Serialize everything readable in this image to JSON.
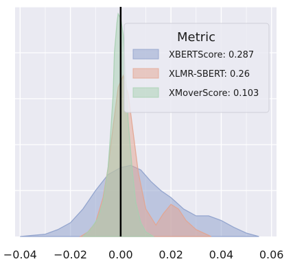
{
  "chart_data": {
    "type": "area",
    "title": "",
    "xlabel": "",
    "ylabel": "",
    "xlim": [
      -0.042,
      0.062
    ],
    "ylim": [
      0,
      1
    ],
    "grid": true,
    "xticks": [
      {
        "value": -0.04,
        "label": "−0.04"
      },
      {
        "value": -0.02,
        "label": "−0.02"
      },
      {
        "value": 0.0,
        "label": "0.00"
      },
      {
        "value": 0.02,
        "label": "0.02"
      },
      {
        "value": 0.04,
        "label": "0.04"
      },
      {
        "value": 0.06,
        "label": "0.06"
      }
    ],
    "vline": 0.0,
    "legend": {
      "title": "Metric",
      "position": "top-right",
      "entries": [
        "XBERTScore: 0.287",
        "XLMR-SBERT: 0.26",
        "XMoverScore: 0.103"
      ]
    },
    "series": [
      {
        "name": "XBERTScore: 0.287",
        "color": "#8da0cb",
        "x": [
          -0.04,
          -0.03,
          -0.025,
          -0.02,
          -0.015,
          -0.01,
          -0.005,
          0.0,
          0.004,
          0.008,
          0.012,
          0.016,
          0.02,
          0.025,
          0.03,
          0.035,
          0.04,
          0.045,
          0.05,
          0.055
        ],
        "values": [
          0.0,
          0.01,
          0.03,
          0.06,
          0.12,
          0.2,
          0.27,
          0.3,
          0.31,
          0.29,
          0.24,
          0.2,
          0.17,
          0.12,
          0.09,
          0.09,
          0.07,
          0.04,
          0.015,
          0.0
        ]
      },
      {
        "name": "XLMR-SBERT: 0.26",
        "color": "#e3a48f",
        "x": [
          -0.016,
          -0.013,
          -0.01,
          -0.007,
          -0.005,
          -0.003,
          -0.001,
          0.001,
          0.003,
          0.005,
          0.007,
          0.01,
          0.014,
          0.017,
          0.02,
          0.023,
          0.026,
          0.03,
          0.036
        ],
        "values": [
          0.0,
          0.02,
          0.06,
          0.17,
          0.3,
          0.48,
          0.65,
          0.7,
          0.62,
          0.45,
          0.28,
          0.12,
          0.05,
          0.1,
          0.14,
          0.12,
          0.07,
          0.03,
          0.0
        ]
      },
      {
        "name": "XMoverScore: 0.103",
        "color": "#a6cfb0",
        "x": [
          -0.015,
          -0.012,
          -0.009,
          -0.007,
          -0.005,
          -0.004,
          -0.003,
          -0.0025,
          -0.0015,
          -0.001,
          0.0,
          0.001,
          0.002,
          0.003,
          0.0045,
          0.006,
          0.008,
          0.01,
          0.013
        ],
        "values": [
          0.0,
          0.03,
          0.08,
          0.15,
          0.3,
          0.45,
          0.62,
          0.8,
          0.93,
          0.97,
          0.95,
          0.88,
          0.7,
          0.5,
          0.3,
          0.15,
          0.06,
          0.02,
          0.0
        ]
      }
    ]
  }
}
